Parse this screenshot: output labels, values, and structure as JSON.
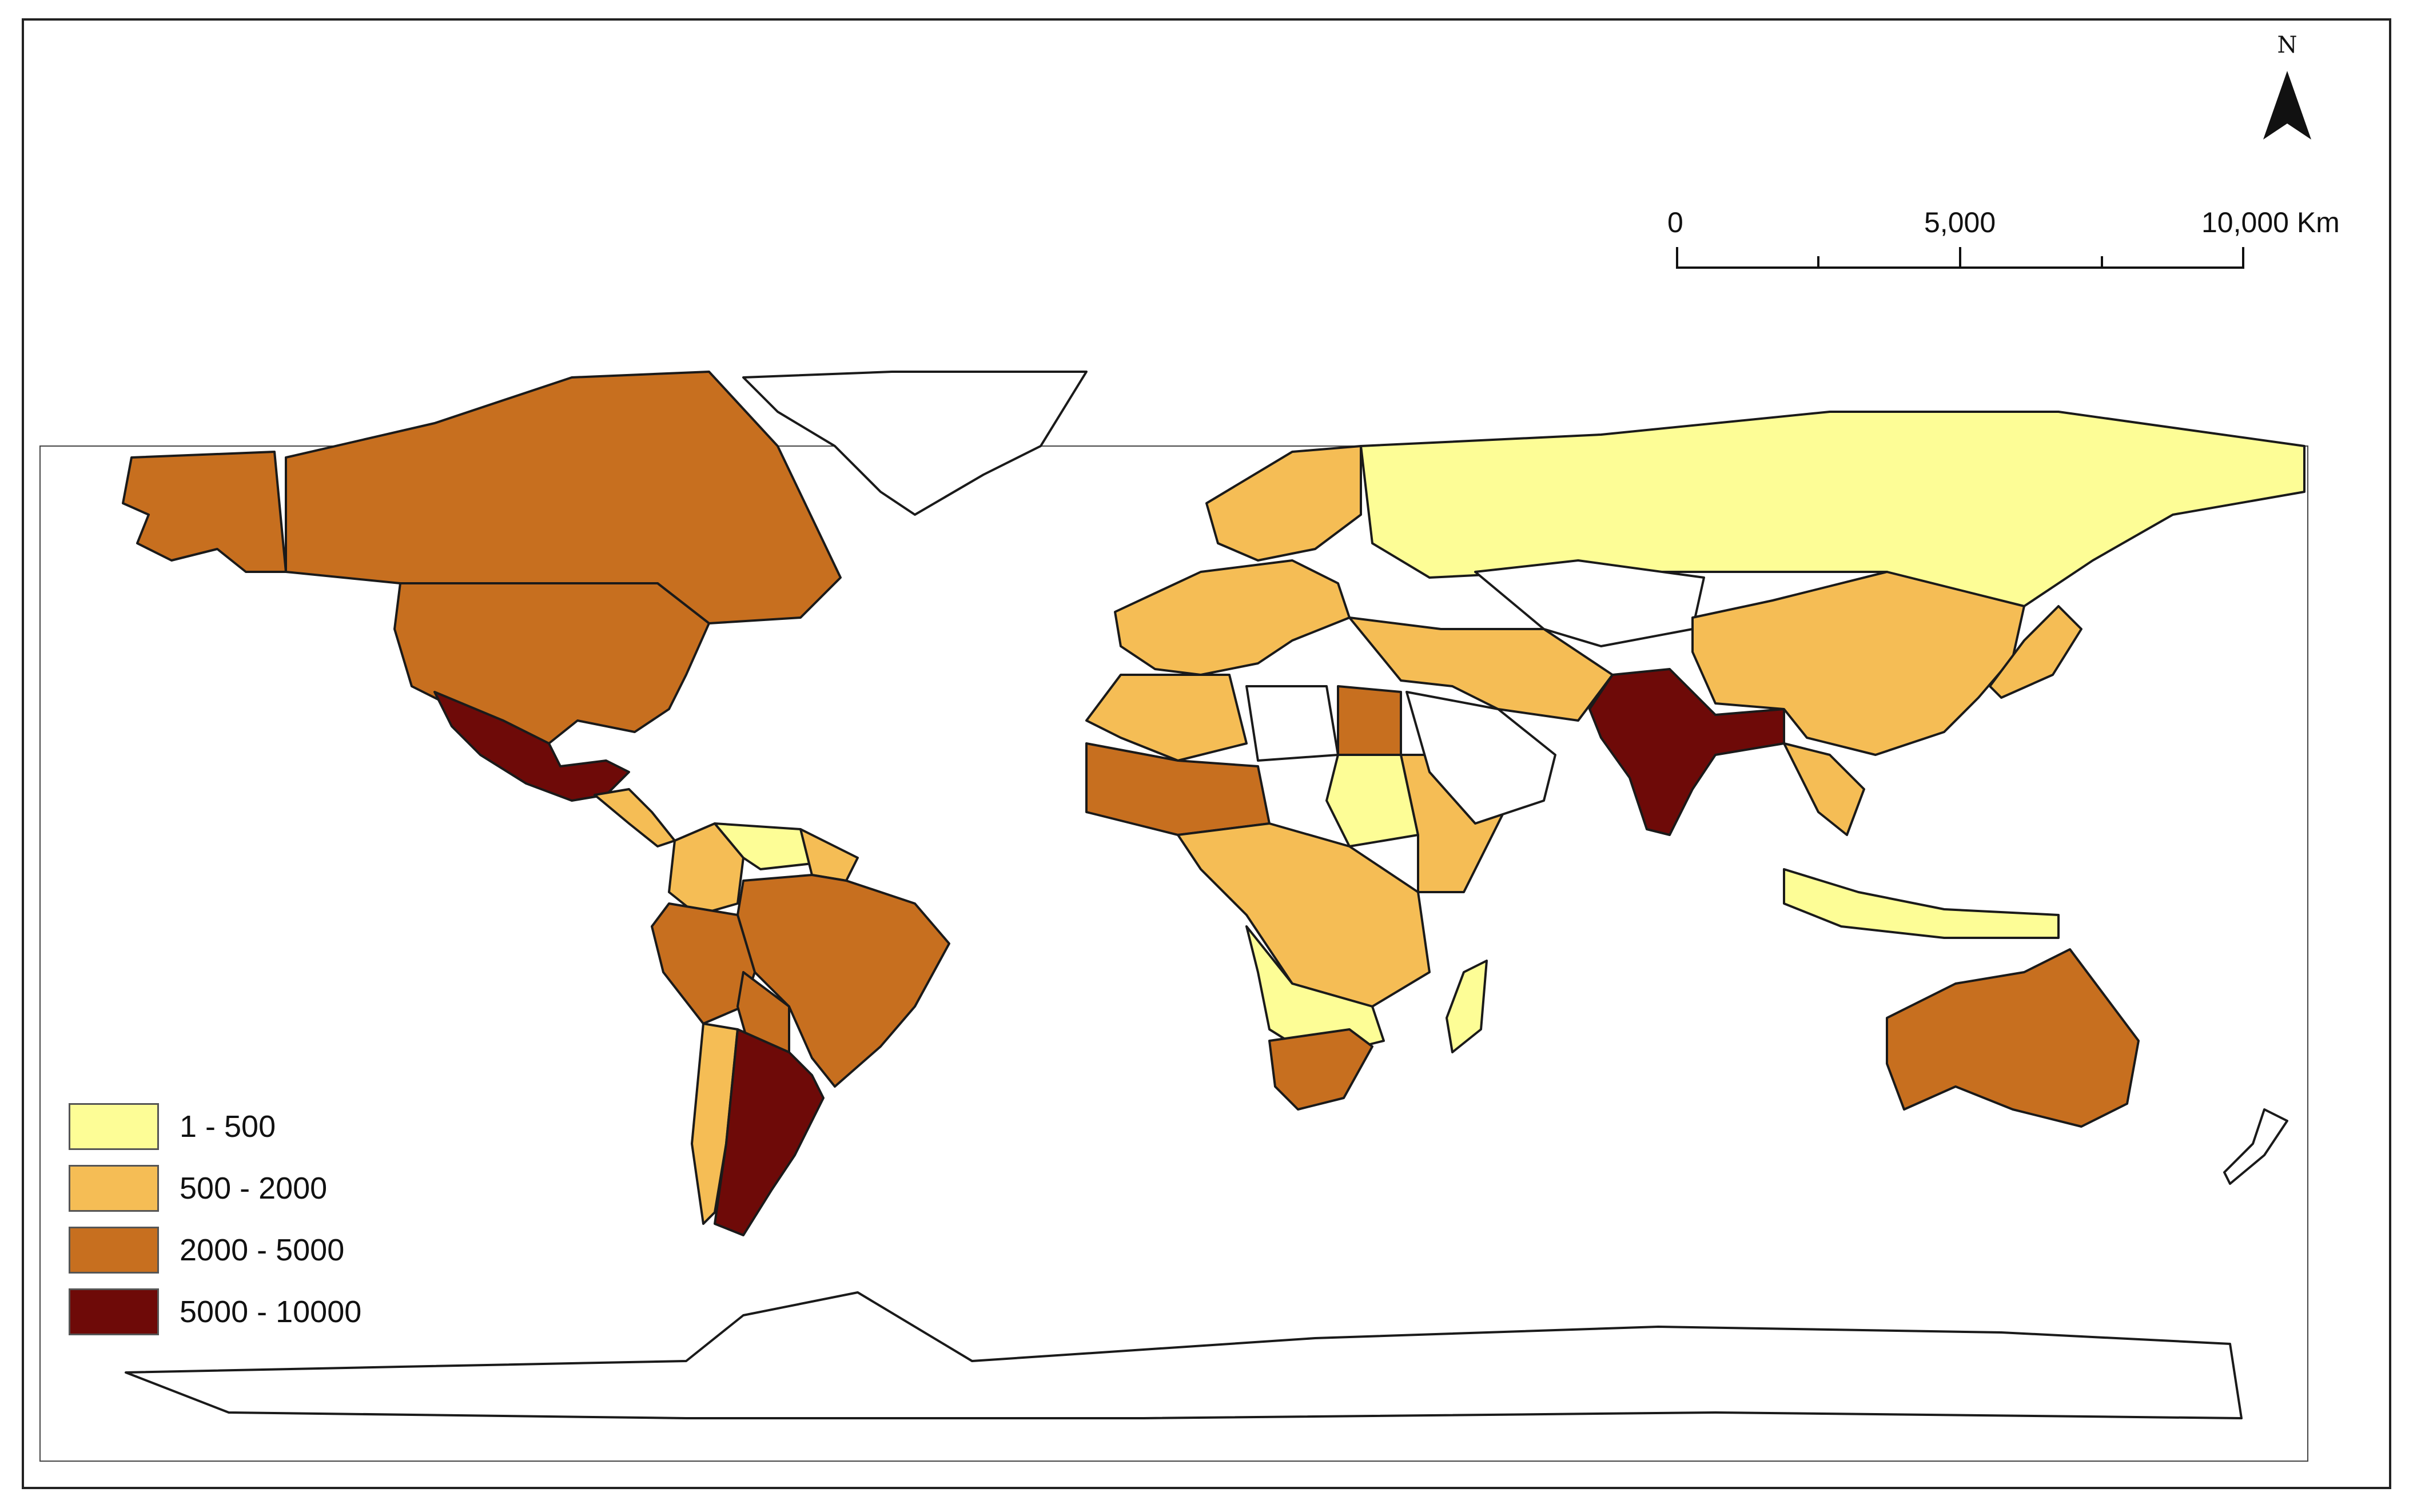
{
  "map": {
    "classes": [
      {
        "key": "c1",
        "label": "1 - 500",
        "color": "#fdfd96"
      },
      {
        "key": "c2",
        "label": "500 - 2000",
        "color": "#f5bd55"
      },
      {
        "key": "c3",
        "label": "2000 - 5000",
        "color": "#c76f1f"
      },
      {
        "key": "c4",
        "label": "5000 - 10000",
        "color": "#6e0a08"
      }
    ],
    "no_data_color": "#ffffff",
    "outline_color": "#1a1a1a",
    "regions": [
      {
        "name": "alaska",
        "class": "c3"
      },
      {
        "name": "canada",
        "class": "c3"
      },
      {
        "name": "united-states",
        "class": "c3"
      },
      {
        "name": "mexico",
        "class": "c4"
      },
      {
        "name": "central-america",
        "class": "c2"
      },
      {
        "name": "colombia",
        "class": "c2"
      },
      {
        "name": "venezuela",
        "class": "c1"
      },
      {
        "name": "guianas",
        "class": "c2"
      },
      {
        "name": "brazil",
        "class": "c3"
      },
      {
        "name": "peru",
        "class": "c3"
      },
      {
        "name": "bolivia",
        "class": "c3"
      },
      {
        "name": "chile",
        "class": "c2"
      },
      {
        "name": "argentina",
        "class": "c4"
      },
      {
        "name": "greenland",
        "class": "none"
      },
      {
        "name": "europe-west",
        "class": "c2"
      },
      {
        "name": "scandinavia",
        "class": "c2"
      },
      {
        "name": "russia",
        "class": "c1"
      },
      {
        "name": "north-africa-west",
        "class": "c2"
      },
      {
        "name": "libya",
        "class": "none"
      },
      {
        "name": "egypt",
        "class": "c3"
      },
      {
        "name": "sahel",
        "class": "c3"
      },
      {
        "name": "sudan",
        "class": "c1"
      },
      {
        "name": "east-africa",
        "class": "c2"
      },
      {
        "name": "central-africa",
        "class": "c2"
      },
      {
        "name": "southern-africa",
        "class": "c1"
      },
      {
        "name": "south-africa",
        "class": "c3"
      },
      {
        "name": "madagascar",
        "class": "c1"
      },
      {
        "name": "middle-east",
        "class": "c2"
      },
      {
        "name": "arabia",
        "class": "none"
      },
      {
        "name": "kazakhstan",
        "class": "none"
      },
      {
        "name": "india",
        "class": "c4"
      },
      {
        "name": "china",
        "class": "c2"
      },
      {
        "name": "southeast-asia",
        "class": "c2"
      },
      {
        "name": "japan",
        "class": "c2"
      },
      {
        "name": "indonesia",
        "class": "c1"
      },
      {
        "name": "australia",
        "class": "c3"
      },
      {
        "name": "new-zealand",
        "class": "none"
      },
      {
        "name": "antarctica",
        "class": "none"
      }
    ]
  },
  "scalebar": {
    "labels": [
      "0",
      "5,000",
      "10,000 Km"
    ]
  },
  "north_arrow": {
    "letter": "N"
  }
}
